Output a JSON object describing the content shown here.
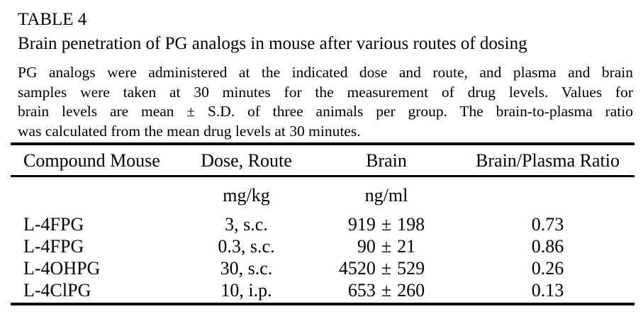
{
  "page": {
    "label": "TABLE 4",
    "title": "Brain penetration of PG analogs in mouse after various routes of dosing",
    "description_lines": [
      "PG analogs were administered at the indicated dose and route, and plasma and brain",
      "samples were taken at 30 minutes for the measurement of drug levels. Values for",
      "brain levels are mean ± S.D. of three animals per group. The brain-to-plasma ratio",
      "was calculated from the mean drug levels at 30 minutes."
    ]
  },
  "table": {
    "headers": {
      "compound": "Compound Mouse",
      "dose": "Dose, Route",
      "brain": "Brain",
      "ratio": "Brain/Plasma Ratio"
    },
    "units": {
      "dose": "mg/kg",
      "brain": "ng/ml"
    },
    "plus_minus": "±",
    "rows": [
      {
        "compound": "L-4FPG",
        "dose": "3, s.c.",
        "brain_mean": "919",
        "brain_sd": "198",
        "ratio": "0.73"
      },
      {
        "compound": "L-4FPG",
        "dose": "0.3, s.c.",
        "brain_mean": "90",
        "brain_sd": "21",
        "ratio": "0.86"
      },
      {
        "compound": "L-4OHPG",
        "dose": "30, s.c.",
        "brain_mean": "4520",
        "brain_sd": "529",
        "ratio": "0.26"
      },
      {
        "compound": "L-4ClPG",
        "dose": "10, i.p.",
        "brain_mean": "653",
        "brain_sd": "260",
        "ratio": "0.13"
      }
    ]
  },
  "colors": {
    "text": "#000000",
    "background": "#ffffff",
    "rule": "#000000"
  }
}
